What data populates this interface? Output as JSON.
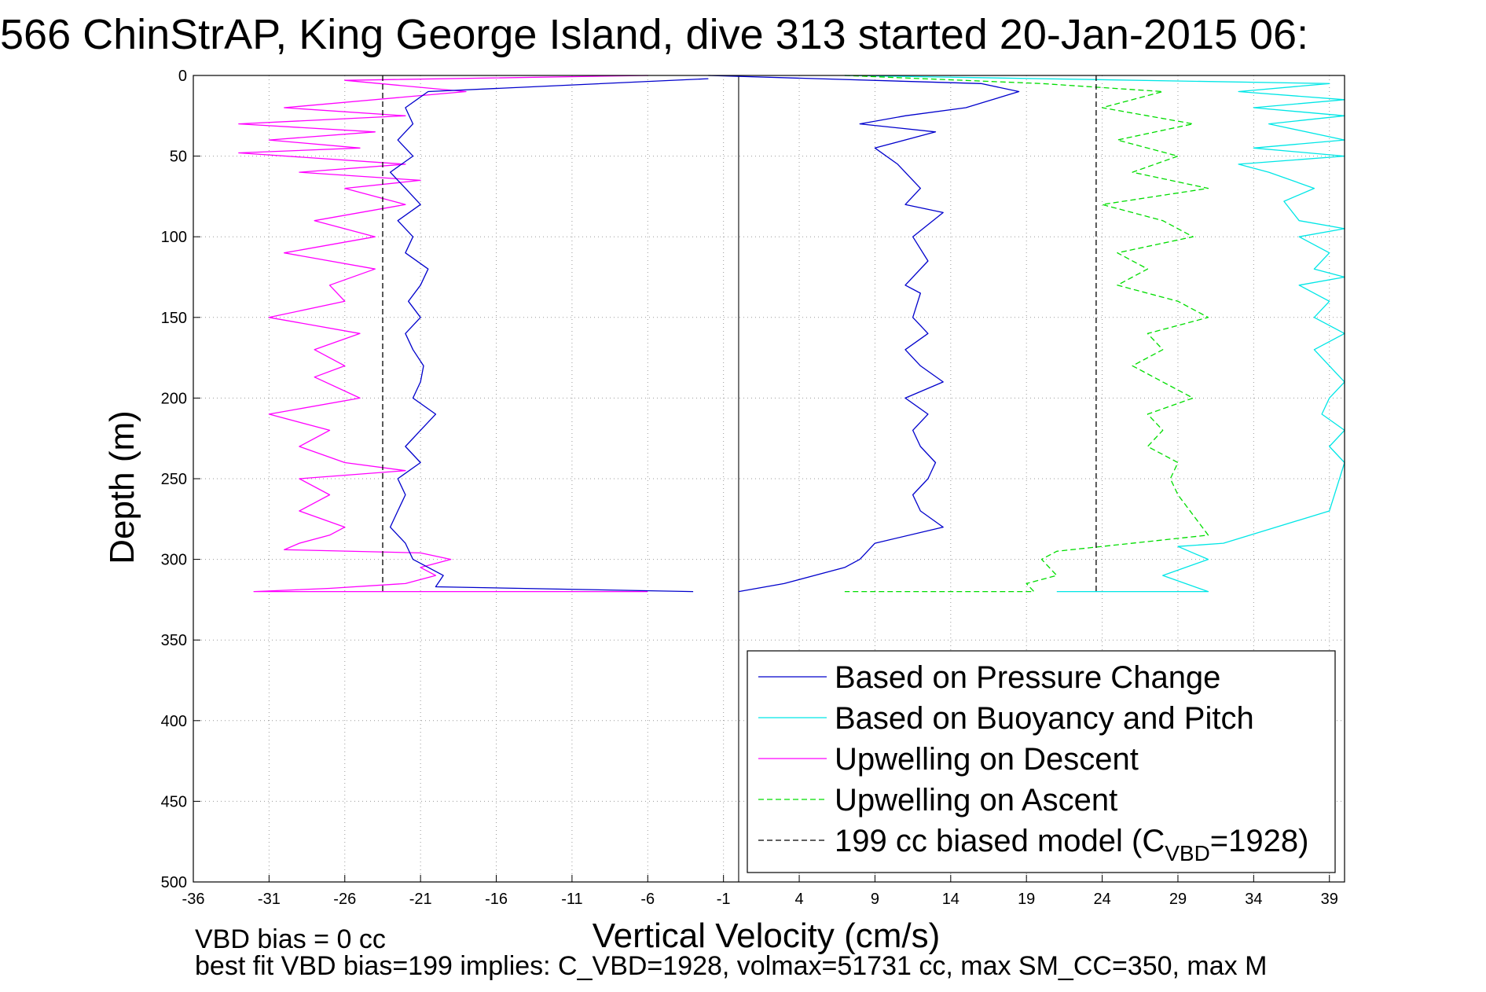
{
  "figure": {
    "title": "566 ChinStrAP, King George Island, dive 313 started 20-Jan-2015 06:",
    "footer_lines": [
      "VBD bias = 0 cc",
      "best fit VBD bias=199 implies: C_VBD=1928, volmax=51731 cc, max SM_CC=350, max M"
    ]
  },
  "chart_data": {
    "type": "line",
    "title": "566 ChinStrAP, King George Island, dive 313 started 20-Jan-2015 06:",
    "xlabel": "Vertical Velocity (cm/s)",
    "ylabel": "Depth (m)",
    "xlim": [
      -36,
      40
    ],
    "ylim": [
      0,
      500
    ],
    "y_reversed": true,
    "grid": "dotted",
    "xticks": [
      -36,
      -31,
      -26,
      -21,
      -16,
      -11,
      -6,
      -1,
      4,
      9,
      14,
      19,
      24,
      29,
      34,
      39
    ],
    "yticks": [
      0,
      50,
      100,
      150,
      200,
      250,
      300,
      350,
      400,
      450,
      500
    ],
    "legend_position": "lower-right",
    "colors": {
      "pressure": "#0000cc",
      "buoyancy": "#00e6e6",
      "descent": "#ff00ff",
      "ascent": "#00dd00",
      "model": "#000000"
    },
    "series": [
      {
        "name": "Based on Pressure Change",
        "key": "pressure",
        "style": "solid",
        "segments": [
          {
            "x": [
              -2.0,
              -20.5,
              -22.0,
              -21.5,
              -22.5,
              -21.5,
              -23.0,
              -22.0,
              -21.0,
              -22.5,
              -21.5,
              -22.0,
              -20.5,
              -21.0,
              -21.8,
              -21.0,
              -22.0,
              -21.5,
              -20.8,
              -21.0,
              -21.5,
              -20.0,
              -21.0,
              -22.0,
              -21.0,
              -22.5,
              -22.0,
              -22.5,
              -23.0,
              -22.0,
              -21.5,
              -19.5,
              -20.0,
              -3.0
            ],
            "y": [
              2,
              10,
              20,
              30,
              40,
              50,
              60,
              70,
              80,
              90,
              100,
              110,
              120,
              130,
              140,
              150,
              160,
              170,
              180,
              190,
              200,
              210,
              220,
              230,
              240,
              250,
              260,
              270,
              280,
              290,
              300,
              310,
              317,
              320
            ]
          },
          {
            "x": [
              -2.0,
              16.0,
              18.5,
              15.0,
              11.0,
              8.0,
              13.0,
              9.0,
              10.5,
              12.0,
              11.0,
              13.5,
              11.5,
              12.5,
              11.0,
              12.0,
              11.5,
              12.5,
              11.0,
              12.0,
              13.5,
              11.0,
              12.5,
              11.5,
              12.0,
              13.0,
              12.5,
              11.5,
              12.0,
              13.5,
              9.0,
              8.0,
              7.0,
              3.0,
              0.0
            ],
            "y": [
              0,
              5,
              10,
              20,
              25,
              30,
              35,
              45,
              55,
              70,
              80,
              85,
              100,
              115,
              130,
              135,
              150,
              160,
              170,
              180,
              190,
              200,
              210,
              220,
              230,
              240,
              250,
              260,
              270,
              280,
              290,
              300,
              305,
              315,
              320
            ]
          }
        ]
      },
      {
        "name": "Based on Buoyancy and Pitch",
        "key": "buoyancy",
        "style": "solid",
        "segments": [
          {
            "x": [
              7.0,
              20.0,
              39.0,
              33.0,
              40.0,
              34.0,
              40.0,
              35.0,
              40.0,
              34.0,
              40.0,
              33.0,
              35.0,
              38.0,
              36.0,
              37.0,
              40.0,
              37.0,
              39.0,
              38.0,
              40.0,
              37.0,
              39.0,
              38.0,
              40.0,
              38.0,
              39.0,
              40.0,
              39.0,
              38.5,
              40.0,
              39.0,
              40.0,
              39.0,
              32.0,
              29.0,
              31.0,
              28.0,
              31.0,
              21.0
            ],
            "y": [
              0,
              2,
              5,
              10,
              15,
              20,
              25,
              30,
              40,
              45,
              50,
              55,
              60,
              70,
              78,
              90,
              95,
              100,
              110,
              120,
              125,
              130,
              140,
              150,
              160,
              170,
              180,
              190,
              200,
              210,
              220,
              230,
              240,
              270,
              290,
              292,
              300,
              310,
              320,
              320
            ]
          }
        ]
      },
      {
        "name": "Upwelling on Descent",
        "key": "descent",
        "style": "solid",
        "segments": [
          {
            "x": [
              -6.0,
              -26.0,
              -18.0,
              -30.0,
              -22.0,
              -33.0,
              -24.0,
              -31.0,
              -25.0,
              -33.0,
              -22.0,
              -29.0,
              -21.0,
              -26.0,
              -22.0,
              -28.0,
              -24.0,
              -30.0,
              -24.0,
              -27.0,
              -26.0,
              -31.0,
              -25.0,
              -28.0,
              -26.0,
              -28.0,
              -25.0,
              -31.0,
              -27.0,
              -29.0,
              -26.0,
              -22.0,
              -29.0,
              -27.0,
              -29.0,
              -26.0,
              -27.0,
              -29.0,
              -30.0,
              -21.0,
              -19.0,
              -21.0,
              -20.0,
              -22.0,
              -27.0,
              -32.0,
              -6.0
            ],
            "y": [
              0,
              3,
              10,
              20,
              25,
              30,
              35,
              40,
              45,
              48,
              55,
              60,
              65,
              70,
              80,
              90,
              100,
              110,
              120,
              130,
              140,
              150,
              160,
              170,
              180,
              187,
              200,
              210,
              220,
              230,
              240,
              245,
              250,
              260,
              270,
              280,
              285,
              290,
              294,
              296,
              300,
              305,
              310,
              315,
              318,
              320,
              320
            ]
          }
        ]
      },
      {
        "name": "Upwelling on Ascent",
        "key": "ascent",
        "style": "dashed",
        "segments": [
          {
            "x": [
              7.0,
              20.0,
              28.0,
              24.0,
              30.0,
              25.0,
              29.0,
              26.0,
              31.0,
              24.0,
              28.0,
              30.0,
              25.0,
              27.0,
              25.0,
              29.0,
              31.0,
              27.0,
              28.0,
              26.0,
              28.0,
              30.0,
              27.0,
              28.0,
              27.0,
              29.0,
              28.5,
              29.0,
              31.0,
              21.0,
              20.0,
              21.0,
              19.0,
              19.5,
              7.0
            ],
            "y": [
              0,
              5,
              10,
              20,
              30,
              40,
              50,
              60,
              70,
              80,
              90,
              100,
              110,
              120,
              130,
              140,
              150,
              160,
              170,
              180,
              190,
              200,
              210,
              220,
              230,
              240,
              250,
              260,
              285,
              295,
              300,
              310,
              315,
              320,
              320
            ]
          }
        ]
      },
      {
        "name": "199 cc biased model (C_VBD=1928)",
        "key": "model",
        "style": "dashed",
        "segments": [
          {
            "x": [
              -23.5,
              -23.5
            ],
            "y": [
              0,
              320
            ]
          },
          {
            "x": [
              23.6,
              23.6
            ],
            "y": [
              0,
              320
            ]
          }
        ]
      }
    ],
    "reference_lines": [
      {
        "x": 0,
        "style": "solid",
        "color": "#555555"
      }
    ],
    "legend": {
      "entries": [
        {
          "label": "Based on Pressure Change",
          "color": "#0000cc",
          "style": "solid"
        },
        {
          "label": "Based on Buoyancy and Pitch",
          "color": "#00e6e6",
          "style": "solid"
        },
        {
          "label": "Upwelling on Descent",
          "color": "#ff00ff",
          "style": "solid"
        },
        {
          "label": "Upwelling on Ascent",
          "color": "#00dd00",
          "style": "dashed"
        },
        {
          "label": "199 cc biased model (C",
          "sub": "VBD",
          "suffix": "=1928)",
          "color": "#000000",
          "style": "dashed"
        }
      ]
    }
  }
}
